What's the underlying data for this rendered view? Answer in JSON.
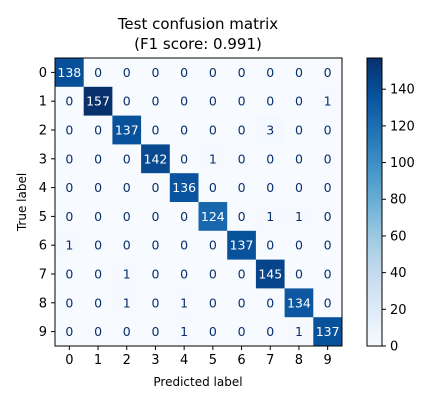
{
  "chart_data": {
    "type": "heatmap",
    "title": "Test confusion matrix",
    "subtitle": "(F1 score: 0.991)",
    "xlabel": "Predicted label",
    "ylabel": "True label",
    "x_ticks": [
      "0",
      "1",
      "2",
      "3",
      "4",
      "5",
      "6",
      "7",
      "8",
      "9"
    ],
    "y_ticks": [
      "0",
      "1",
      "2",
      "3",
      "4",
      "5",
      "6",
      "7",
      "8",
      "9"
    ],
    "matrix": [
      [
        138,
        0,
        0,
        0,
        0,
        0,
        0,
        0,
        0,
        0
      ],
      [
        0,
        157,
        0,
        0,
        0,
        0,
        0,
        0,
        0,
        1
      ],
      [
        0,
        0,
        137,
        0,
        0,
        0,
        0,
        3,
        0,
        0
      ],
      [
        0,
        0,
        0,
        142,
        0,
        1,
        0,
        0,
        0,
        0
      ],
      [
        0,
        0,
        0,
        0,
        136,
        0,
        0,
        0,
        0,
        0
      ],
      [
        0,
        0,
        0,
        0,
        0,
        124,
        0,
        1,
        1,
        0
      ],
      [
        1,
        0,
        0,
        0,
        0,
        0,
        137,
        0,
        0,
        0
      ],
      [
        0,
        0,
        1,
        0,
        0,
        0,
        0,
        145,
        0,
        0
      ],
      [
        0,
        0,
        1,
        0,
        1,
        0,
        0,
        0,
        134,
        0
      ],
      [
        0,
        0,
        0,
        0,
        1,
        0,
        0,
        0,
        1,
        137
      ]
    ],
    "colorbar": {
      "min": 0,
      "max": 157,
      "ticks": [
        0,
        20,
        40,
        60,
        80,
        100,
        120,
        140
      ]
    },
    "colormap": "Blues",
    "colors": {
      "low": "#f7fbff",
      "high": "#08306b",
      "text_dark": "#08306b",
      "text_light": "#ffffff"
    }
  }
}
